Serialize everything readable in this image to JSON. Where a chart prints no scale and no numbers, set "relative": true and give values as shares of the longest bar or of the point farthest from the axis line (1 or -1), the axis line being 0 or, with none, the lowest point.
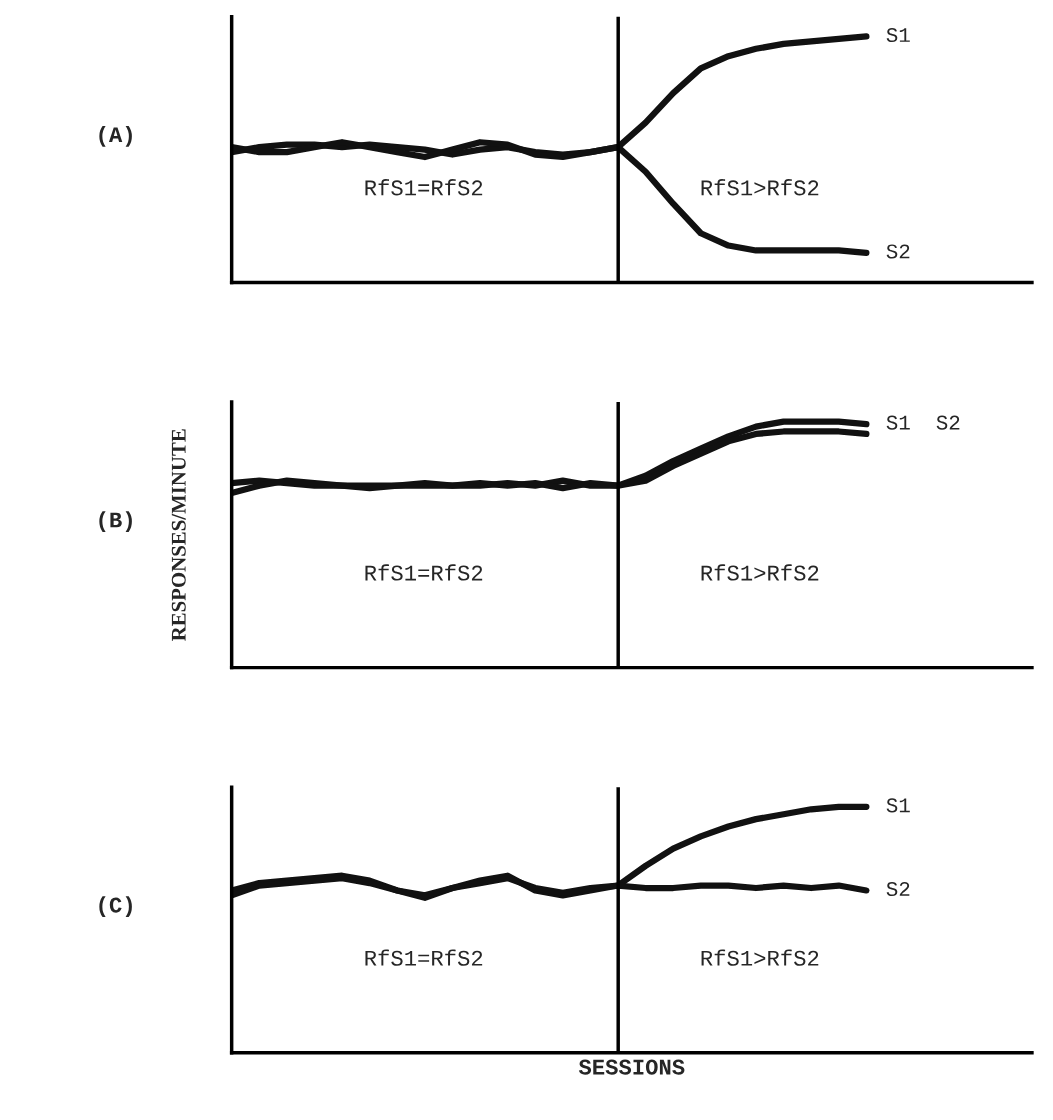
{
  "chart_data": [
    {
      "type": "line",
      "title": "(A)",
      "relative": true,
      "legend": false,
      "marker": "none",
      "line_style": "solid",
      "categories": [
        null,
        null,
        null,
        null,
        null,
        null,
        null,
        null,
        null,
        null,
        null,
        null,
        null,
        null,
        null,
        null,
        null,
        null,
        null,
        null,
        null,
        null,
        null,
        null,
        null,
        null,
        null,
        null,
        null,
        null
      ],
      "annotations": [
        "RfS1=RfS2",
        "RfS1>RfS2"
      ],
      "series": [
        {
          "name": "S1",
          "color": "#111111",
          "values": [
            0.53,
            0.55,
            0.56,
            0.56,
            0.55,
            0.56,
            0.55,
            0.54,
            0.52,
            0.54,
            0.55,
            0.53,
            0.52,
            0.53,
            0.55,
            0.65,
            0.77,
            0.87,
            0.92,
            0.95,
            0.97,
            0.98,
            0.99,
            1.0,
            null,
            null,
            null,
            null,
            null,
            null
          ]
        },
        {
          "name": "S2",
          "color": "#111111",
          "values": [
            0.55,
            0.53,
            0.53,
            0.55,
            0.57,
            0.55,
            0.53,
            0.51,
            0.54,
            0.57,
            0.56,
            0.52,
            0.51,
            0.53,
            0.55,
            0.45,
            0.32,
            0.2,
            0.15,
            0.13,
            0.13,
            0.13,
            0.13,
            0.12,
            null,
            null,
            null,
            null,
            null,
            null
          ]
        }
      ]
    },
    {
      "type": "line",
      "title": "(B)",
      "ylabel": "RESPONSES/MINUTE",
      "relative": true,
      "legend": false,
      "marker": "none",
      "line_style": "solid",
      "categories": [
        null,
        null,
        null,
        null,
        null,
        null,
        null,
        null,
        null,
        null,
        null,
        null,
        null,
        null,
        null,
        null,
        null,
        null,
        null,
        null,
        null,
        null,
        null,
        null,
        null,
        null,
        null,
        null,
        null,
        null
      ],
      "annotations": [
        "RfS1=RfS2",
        "RfS1>RfS2"
      ],
      "series": [
        {
          "name": "S1",
          "color": "#111111",
          "values": [
            0.75,
            0.76,
            0.75,
            0.74,
            0.74,
            0.74,
            0.74,
            0.75,
            0.74,
            0.74,
            0.75,
            0.74,
            0.76,
            0.74,
            0.74,
            0.78,
            0.84,
            0.89,
            0.94,
            0.98,
            1.0,
            1.0,
            1.0,
            0.99,
            null,
            null,
            null,
            null,
            null,
            null
          ]
        },
        {
          "name": "S2",
          "color": "#111111",
          "values": [
            0.71,
            0.74,
            0.76,
            0.75,
            0.74,
            0.73,
            0.74,
            0.74,
            0.74,
            0.75,
            0.74,
            0.75,
            0.73,
            0.75,
            0.74,
            0.76,
            0.82,
            0.87,
            0.92,
            0.95,
            0.96,
            0.96,
            0.96,
            0.95,
            null,
            null,
            null,
            null,
            null,
            null
          ]
        }
      ]
    },
    {
      "type": "line",
      "title": "(C)",
      "xlabel": "SESSIONS",
      "relative": true,
      "legend": false,
      "marker": "none",
      "line_style": "solid",
      "categories": [
        null,
        null,
        null,
        null,
        null,
        null,
        null,
        null,
        null,
        null,
        null,
        null,
        null,
        null,
        null,
        null,
        null,
        null,
        null,
        null,
        null,
        null,
        null,
        null,
        null,
        null,
        null,
        null,
        null,
        null
      ],
      "annotations": [
        "RfS1=RfS2",
        "RfS1>RfS2"
      ],
      "series": [
        {
          "name": "S1",
          "color": "#111111",
          "values": [
            0.66,
            0.69,
            0.7,
            0.71,
            0.72,
            0.7,
            0.66,
            0.63,
            0.67,
            0.7,
            0.72,
            0.66,
            0.64,
            0.66,
            0.68,
            0.76,
            0.83,
            0.88,
            0.92,
            0.95,
            0.97,
            0.99,
            1.0,
            1.0,
            null,
            null,
            null,
            null,
            null,
            null
          ]
        },
        {
          "name": "S2",
          "color": "#111111",
          "values": [
            0.64,
            0.68,
            0.69,
            0.7,
            0.71,
            0.69,
            0.66,
            0.64,
            0.67,
            0.69,
            0.71,
            0.67,
            0.65,
            0.67,
            0.68,
            0.67,
            0.67,
            0.68,
            0.68,
            0.67,
            0.68,
            0.67,
            0.68,
            0.66,
            null,
            null,
            null,
            null,
            null,
            null
          ]
        }
      ]
    }
  ]
}
